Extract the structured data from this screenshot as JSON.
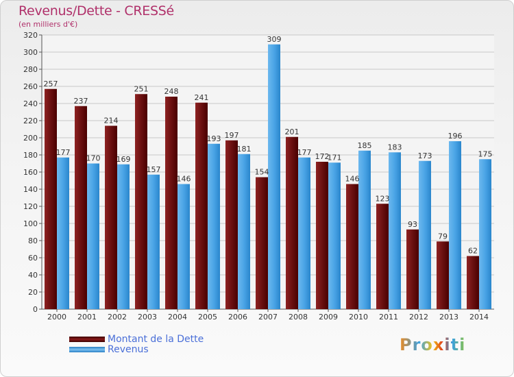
{
  "title": "Revenus/Dette - CRESSé",
  "subtitle": "(en milliers d'€)",
  "logo_text": "Proxiti",
  "chart_data": {
    "type": "bar",
    "categories": [
      "2000",
      "2001",
      "2002",
      "2003",
      "2004",
      "2005",
      "2006",
      "2007",
      "2008",
      "2009",
      "2010",
      "2011",
      "2012",
      "2013",
      "2014"
    ],
    "series": [
      {
        "name": "Montant de la Dette",
        "color": "#7a1010",
        "values": [
          257,
          237,
          214,
          251,
          248,
          241,
          197,
          154,
          201,
          172,
          146,
          123,
          93,
          79,
          62
        ]
      },
      {
        "name": "Revenus",
        "color": "#3e9be0",
        "values": [
          177,
          170,
          169,
          157,
          146,
          193,
          181,
          309,
          177,
          171,
          185,
          183,
          173,
          196,
          175
        ]
      }
    ],
    "ylim": [
      0,
      320
    ],
    "yticks": [
      0,
      20,
      40,
      60,
      80,
      100,
      120,
      140,
      160,
      180,
      200,
      220,
      240,
      260,
      280,
      300,
      320
    ],
    "grid": true,
    "legend": "bottom-left"
  }
}
